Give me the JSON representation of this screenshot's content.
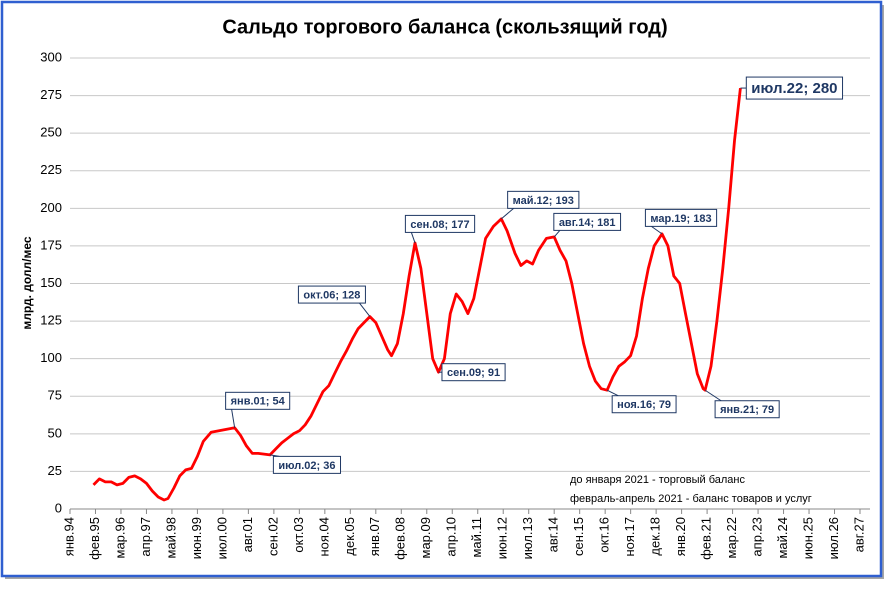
{
  "chart_data": {
    "type": "line",
    "title": "Сальдо торгового баланса (скользящий год)",
    "y_label": "млрд. долл/мес",
    "notes": [
      "до января 2021 - торговый баланс",
      "февраль-апрель 2021 - баланс товаров и услуг"
    ],
    "color": "#ff0000",
    "grid": true,
    "ylim": [
      0,
      300
    ],
    "yticks": [
      0,
      25,
      50,
      75,
      100,
      125,
      150,
      175,
      200,
      225,
      250,
      275,
      300
    ],
    "xlim": [
      "1994-01",
      "2027-08"
    ],
    "xticks": [
      {
        "value": "1994-01",
        "label": "янв.94"
      },
      {
        "value": "1995-02",
        "label": "фев.95"
      },
      {
        "value": "1996-03",
        "label": "мар.96"
      },
      {
        "value": "1997-04",
        "label": "апр.97"
      },
      {
        "value": "1998-05",
        "label": "май.98"
      },
      {
        "value": "1999-06",
        "label": "июн.99"
      },
      {
        "value": "2000-07",
        "label": "июл.00"
      },
      {
        "value": "2001-08",
        "label": "авг.01"
      },
      {
        "value": "2002-09",
        "label": "сен.02"
      },
      {
        "value": "2003-10",
        "label": "окт.03"
      },
      {
        "value": "2004-11",
        "label": "ноя.04"
      },
      {
        "value": "2005-12",
        "label": "дек.05"
      },
      {
        "value": "2007-01",
        "label": "янв.07"
      },
      {
        "value": "2008-02",
        "label": "фев.08"
      },
      {
        "value": "2009-03",
        "label": "мар.09"
      },
      {
        "value": "2010-04",
        "label": "апр.10"
      },
      {
        "value": "2011-05",
        "label": "май.11"
      },
      {
        "value": "2012-06",
        "label": "июн.12"
      },
      {
        "value": "2013-07",
        "label": "июл.13"
      },
      {
        "value": "2014-08",
        "label": "авг.14"
      },
      {
        "value": "2015-09",
        "label": "сен.15"
      },
      {
        "value": "2016-10",
        "label": "окт.16"
      },
      {
        "value": "2017-11",
        "label": "ноя.17"
      },
      {
        "value": "2018-12",
        "label": "дек.18"
      },
      {
        "value": "2020-01",
        "label": "янв.20"
      },
      {
        "value": "2021-02",
        "label": "фев.21"
      },
      {
        "value": "2022-03",
        "label": "мар.22"
      },
      {
        "value": "2023-04",
        "label": "апр.23"
      },
      {
        "value": "2024-05",
        "label": "май.24"
      },
      {
        "value": "2025-06",
        "label": "июн.25"
      },
      {
        "value": "2026-07",
        "label": "июл.26"
      },
      {
        "value": "2027-08",
        "label": "авг.27"
      }
    ],
    "x": [
      "1995-01",
      "1995-04",
      "1995-07",
      "1995-10",
      "1996-01",
      "1996-04",
      "1996-07",
      "1996-10",
      "1997-01",
      "1997-04",
      "1997-07",
      "1997-10",
      "1998-01",
      "1998-03",
      "1998-06",
      "1998-09",
      "1998-12",
      "1999-03",
      "1999-06",
      "1999-09",
      "2000-01",
      "2001-01",
      "2001-04",
      "2001-07",
      "2001-10",
      "2002-01",
      "2002-07",
      "2002-10",
      "2003-01",
      "2003-04",
      "2003-07",
      "2003-10",
      "2004-01",
      "2004-04",
      "2004-07",
      "2004-10",
      "2005-01",
      "2005-04",
      "2005-07",
      "2005-10",
      "2006-01",
      "2006-04",
      "2006-07",
      "2006-10",
      "2007-01",
      "2007-04",
      "2007-07",
      "2007-09",
      "2007-12",
      "2008-03",
      "2008-06",
      "2008-09",
      "2008-12",
      "2009-03",
      "2009-06",
      "2009-09",
      "2009-12",
      "2010-03",
      "2010-06",
      "2010-09",
      "2010-12",
      "2011-03",
      "2011-06",
      "2011-09",
      "2012-01",
      "2012-05",
      "2012-08",
      "2012-12",
      "2013-03",
      "2013-06",
      "2013-09",
      "2013-12",
      "2014-04",
      "2014-08",
      "2014-11",
      "2015-02",
      "2015-05",
      "2015-08",
      "2015-11",
      "2016-02",
      "2016-05",
      "2016-08",
      "2016-11",
      "2017-02",
      "2017-05",
      "2017-08",
      "2017-11",
      "2018-02",
      "2018-05",
      "2018-08",
      "2018-11",
      "2019-03",
      "2019-06",
      "2019-09",
      "2019-12",
      "2020-03",
      "2020-06",
      "2020-09",
      "2020-12",
      "2021-01",
      "2021-04",
      "2021-07",
      "2021-10",
      "2022-01",
      "2022-04",
      "2022-07"
    ],
    "values": [
      16,
      20,
      18,
      18,
      16,
      17,
      21,
      22,
      20,
      17,
      12,
      8,
      6,
      7,
      14,
      22,
      26,
      27,
      35,
      45,
      51,
      54,
      49,
      42,
      37,
      37,
      36,
      40,
      44,
      47,
      50,
      52,
      56,
      62,
      70,
      78,
      82,
      90,
      98,
      105,
      113,
      120,
      124,
      128,
      124,
      115,
      106,
      102,
      110,
      130,
      155,
      177,
      160,
      130,
      100,
      91,
      100,
      130,
      143,
      138,
      130,
      140,
      160,
      180,
      188,
      193,
      185,
      170,
      162,
      165,
      163,
      172,
      180,
      181,
      172,
      165,
      150,
      130,
      110,
      95,
      85,
      80,
      79,
      88,
      95,
      98,
      102,
      115,
      140,
      160,
      175,
      183,
      175,
      155,
      150,
      130,
      110,
      90,
      80,
      79,
      95,
      125,
      160,
      200,
      245,
      280
    ],
    "annotations": [
      {
        "text": "янв.01; 54",
        "x": "2001-01"
      },
      {
        "text": "июл.02; 36",
        "x": "2002-07"
      },
      {
        "text": "окт.06; 128",
        "x": "2006-10"
      },
      {
        "text": "сен.08; 177",
        "x": "2008-09"
      },
      {
        "text": "сен.09; 91",
        "x": "2009-09"
      },
      {
        "text": "май.12; 193",
        "x": "2012-05"
      },
      {
        "text": "авг.14; 181",
        "x": "2014-08"
      },
      {
        "text": "ноя.16; 79",
        "x": "2016-11"
      },
      {
        "text": "мар.19; 183",
        "x": "2019-03"
      },
      {
        "text": "янв.21; 79",
        "x": "2021-01"
      },
      {
        "text": "июл.22; 280",
        "x": "2022-07"
      }
    ]
  }
}
